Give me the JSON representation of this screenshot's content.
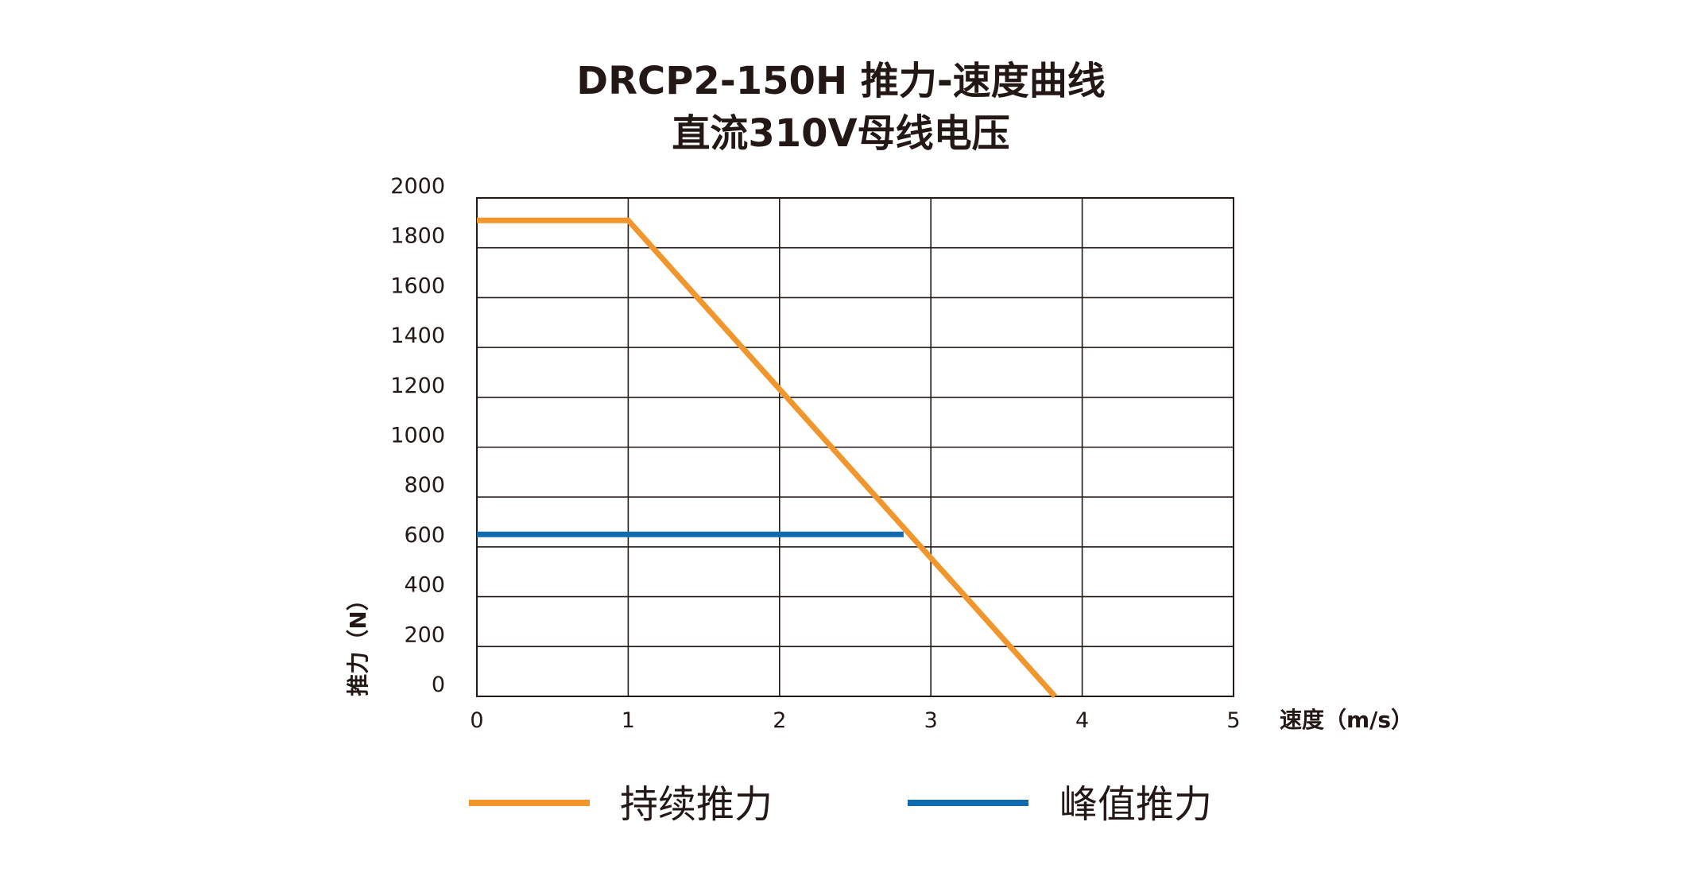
{
  "chart_data": {
    "type": "line",
    "title": "DRCP2-150H 推力-速度曲线",
    "subtitle": "直流310V母线电压",
    "xlabel": "速度（m/s）",
    "ylabel": "推力（N）",
    "xlim": [
      0,
      5
    ],
    "ylim": [
      0,
      2000
    ],
    "x_ticks": [
      "0",
      "1",
      "2",
      "3",
      "4",
      "5"
    ],
    "y_ticks": [
      "0",
      "200",
      "400",
      "600",
      "800",
      "1000",
      "1200",
      "1400",
      "1600",
      "1800",
      "2000"
    ],
    "grid": true,
    "legend_position": "bottom",
    "series": [
      {
        "name": "持续推力",
        "color": "#F0962D",
        "points": [
          [
            0,
            1910
          ],
          [
            1,
            1910
          ],
          [
            3.82,
            0
          ]
        ]
      },
      {
        "name": "峰值推力",
        "color": "#0F6AAE",
        "points": [
          [
            0,
            650
          ],
          [
            2.82,
            650
          ]
        ]
      }
    ]
  }
}
